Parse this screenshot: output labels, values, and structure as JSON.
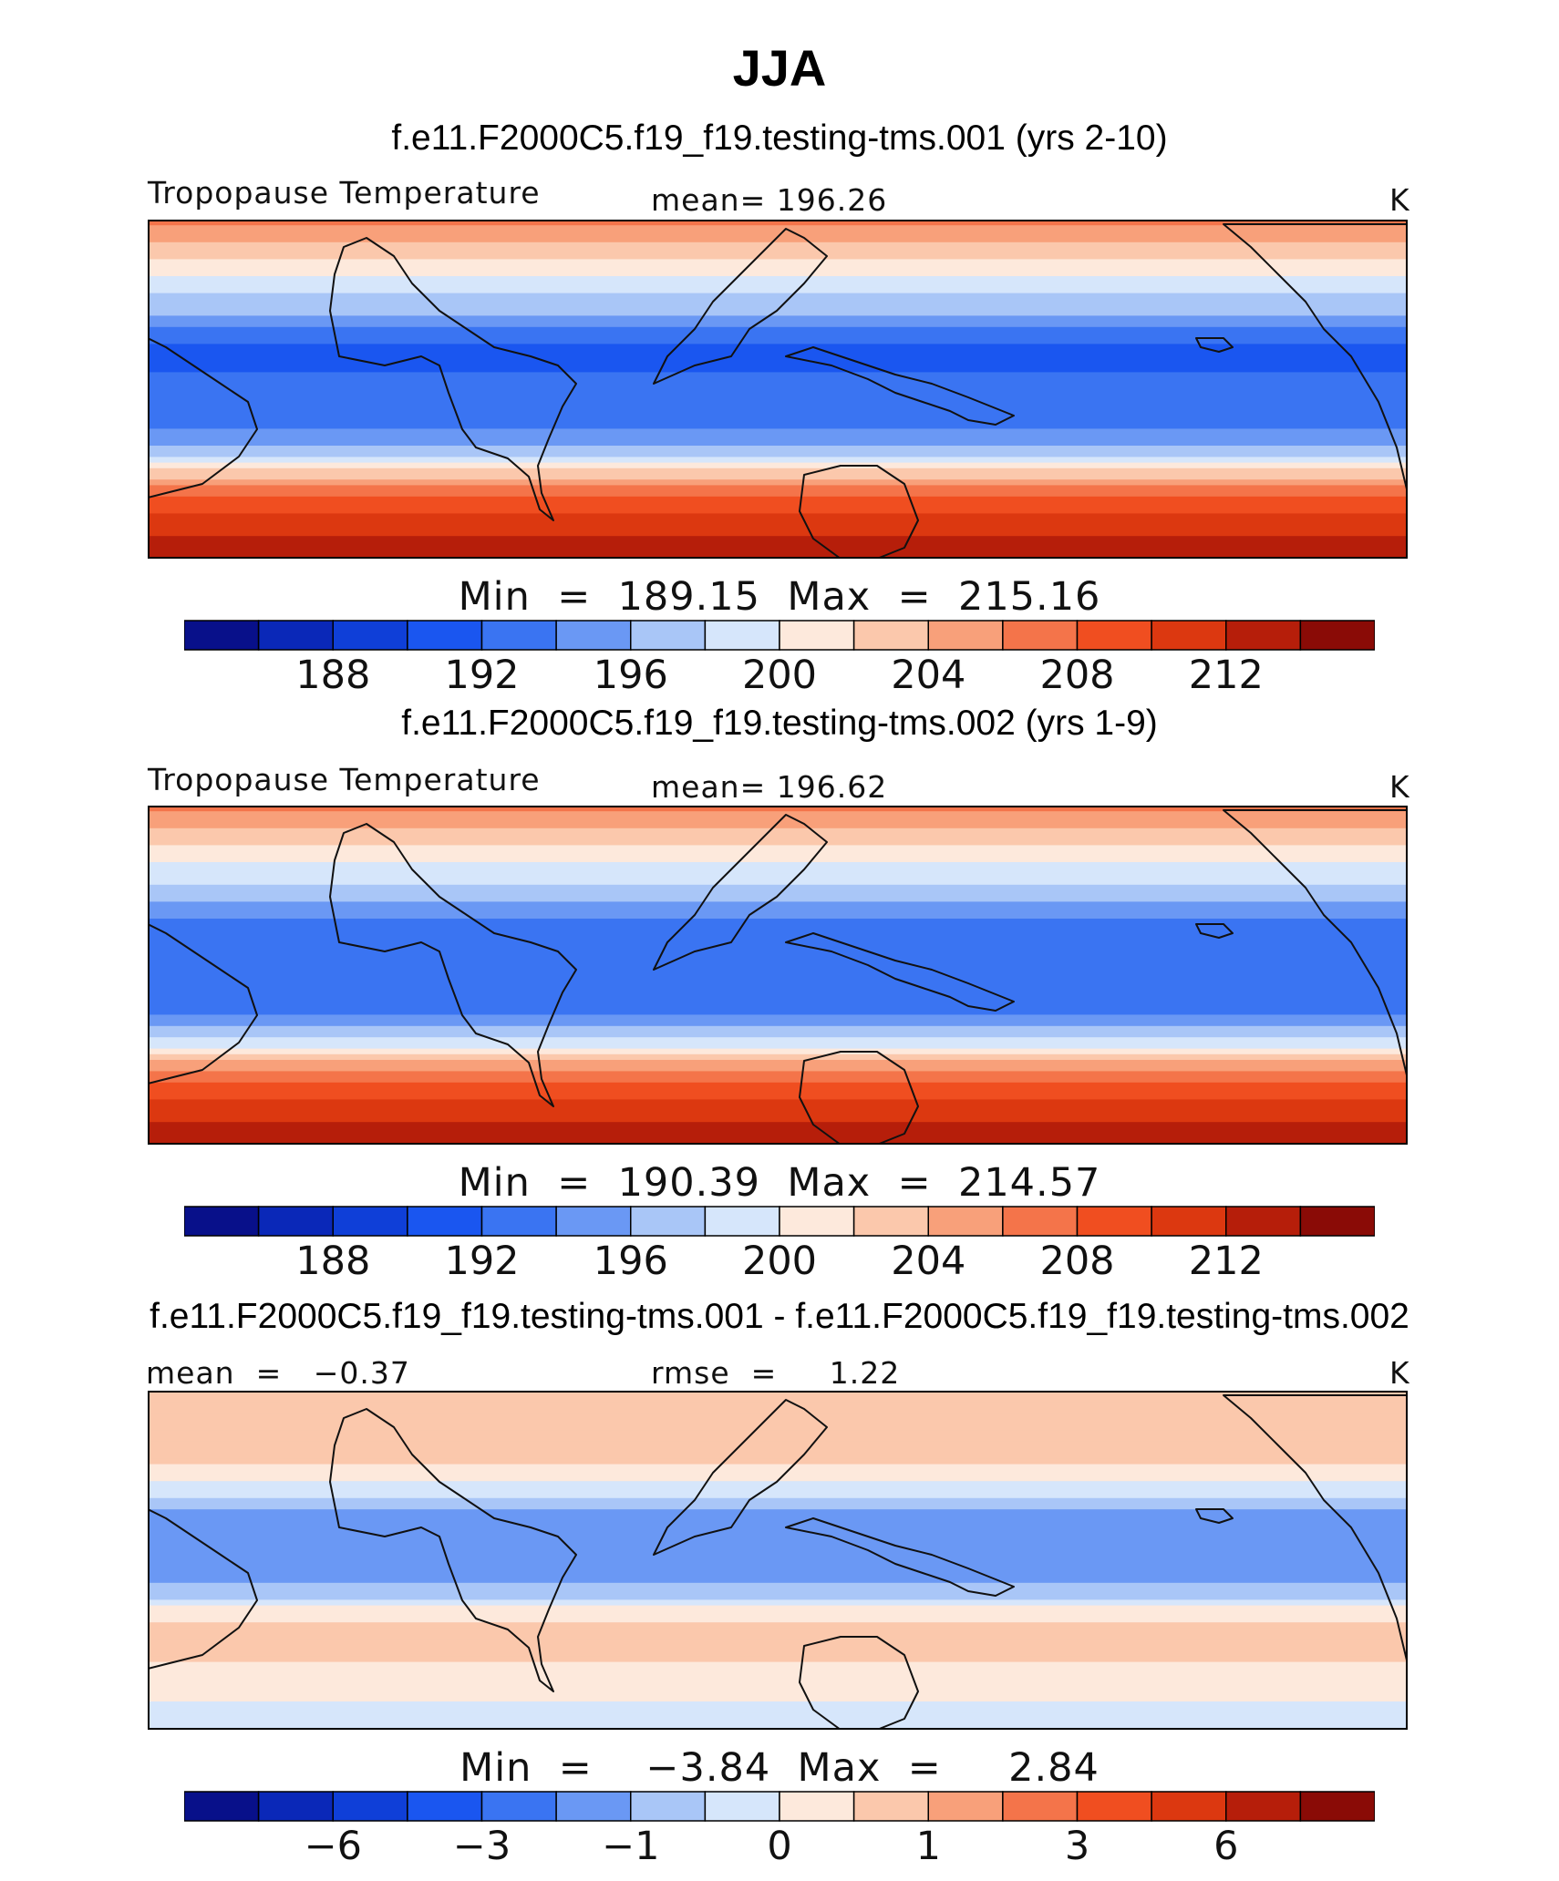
{
  "figure": {
    "title": "JJA"
  },
  "chart_data": [
    {
      "type": "contour-map",
      "title": "f.e11.F2000C5.f19_f19.testing-tms.001 (yrs 2-10)",
      "variable": "Tropopause Temperature",
      "mean_label": "mean=",
      "mean": "196.26",
      "units": "K",
      "stats_text": "Min  =  189.15  Max  =  215.16",
      "min": 189.15,
      "max": 215.16,
      "colorbar": {
        "levels": [
          186,
          188,
          190,
          192,
          194,
          196,
          198,
          200,
          202,
          204,
          206,
          208,
          210,
          212
        ],
        "tick_labels": [
          "188",
          "192",
          "196",
          "200",
          "204",
          "208",
          "212"
        ],
        "colors": [
          "#08108a",
          "#0a28b8",
          "#0f3fd8",
          "#1a56f0",
          "#3a74f2",
          "#6a98f4",
          "#a9c6f7",
          "#d6e6fb",
          "#fde9dc",
          "#fbc8ac",
          "#f8a07a",
          "#f4744a",
          "#f04e20",
          "#dc3810",
          "#b61e0a",
          "#8a0b06"
        ]
      },
      "lat_profile": {
        "lat": [
          90,
          70,
          55,
          40,
          30,
          20,
          10,
          0,
          -10,
          -20,
          -30,
          -40,
          -50,
          -65,
          -90
        ],
        "value": [
          207,
          202,
          199,
          196,
          193,
          191,
          192,
          192.5,
          193,
          193.5,
          196,
          200,
          206,
          210,
          214
        ]
      }
    },
    {
      "type": "contour-map",
      "title": "f.e11.F2000C5.f19_f19.testing-tms.002 (yrs 1-9)",
      "variable": "Tropopause Temperature",
      "mean_label": "mean=",
      "mean": "196.62",
      "units": "K",
      "stats_text": "Min  =  190.39  Max  =  214.57",
      "min": 190.39,
      "max": 214.57,
      "colorbar": {
        "levels": [
          186,
          188,
          190,
          192,
          194,
          196,
          198,
          200,
          202,
          204,
          206,
          208,
          210,
          212
        ],
        "tick_labels": [
          "188",
          "192",
          "196",
          "200",
          "204",
          "208",
          "212"
        ],
        "colors": [
          "#08108a",
          "#0a28b8",
          "#0f3fd8",
          "#1a56f0",
          "#3a74f2",
          "#6a98f4",
          "#a9c6f7",
          "#d6e6fb",
          "#fde9dc",
          "#fbc8ac",
          "#f8a07a",
          "#f4744a",
          "#f04e20",
          "#dc3810",
          "#b61e0a",
          "#8a0b06"
        ]
      },
      "lat_profile": {
        "lat": [
          90,
          70,
          55,
          40,
          30,
          20,
          10,
          0,
          -10,
          -20,
          -30,
          -40,
          -50,
          -65,
          -90
        ],
        "value": [
          207,
          202,
          199,
          196.5,
          194,
          192,
          192.5,
          193,
          193.5,
          194,
          196.5,
          200.5,
          206,
          210,
          213.5
        ]
      }
    },
    {
      "type": "contour-map",
      "title": "f.e11.F2000C5.f19_f19.testing-tms.001 - f.e11.F2000C5.f19_f19.testing-tms.002",
      "mean_label": "mean  =",
      "mean": "−0.37",
      "rmse_label": "rmse  =",
      "rmse": "1.22",
      "units": "K",
      "stats_text": "Min  =    −3.84  Max  =     2.84",
      "min": -3.84,
      "max": 2.84,
      "colorbar": {
        "levels": [
          -8,
          -6,
          -4,
          -3,
          -2,
          -1,
          -0.5,
          0,
          0.5,
          1,
          2,
          3,
          4,
          6,
          8
        ],
        "tick_labels": [
          "−6",
          "−3",
          "−1",
          "0",
          "1",
          "3",
          "6"
        ],
        "colors": [
          "#08108a",
          "#0a28b8",
          "#0f3fd8",
          "#1a56f0",
          "#3a74f2",
          "#6a98f4",
          "#a9c6f7",
          "#d6e6fb",
          "#fde9dc",
          "#fbc8ac",
          "#f8a07a",
          "#f4744a",
          "#f04e20",
          "#dc3810",
          "#b61e0a",
          "#8a0b06"
        ]
      },
      "lat_profile": {
        "lat": [
          90,
          60,
          45,
          30,
          15,
          0,
          -15,
          -30,
          -45,
          -60,
          -90
        ],
        "value": [
          0.6,
          0.9,
          0.2,
          -0.8,
          -1.6,
          -1.8,
          -0.9,
          0.4,
          1.0,
          0.2,
          -0.2
        ]
      }
    }
  ]
}
